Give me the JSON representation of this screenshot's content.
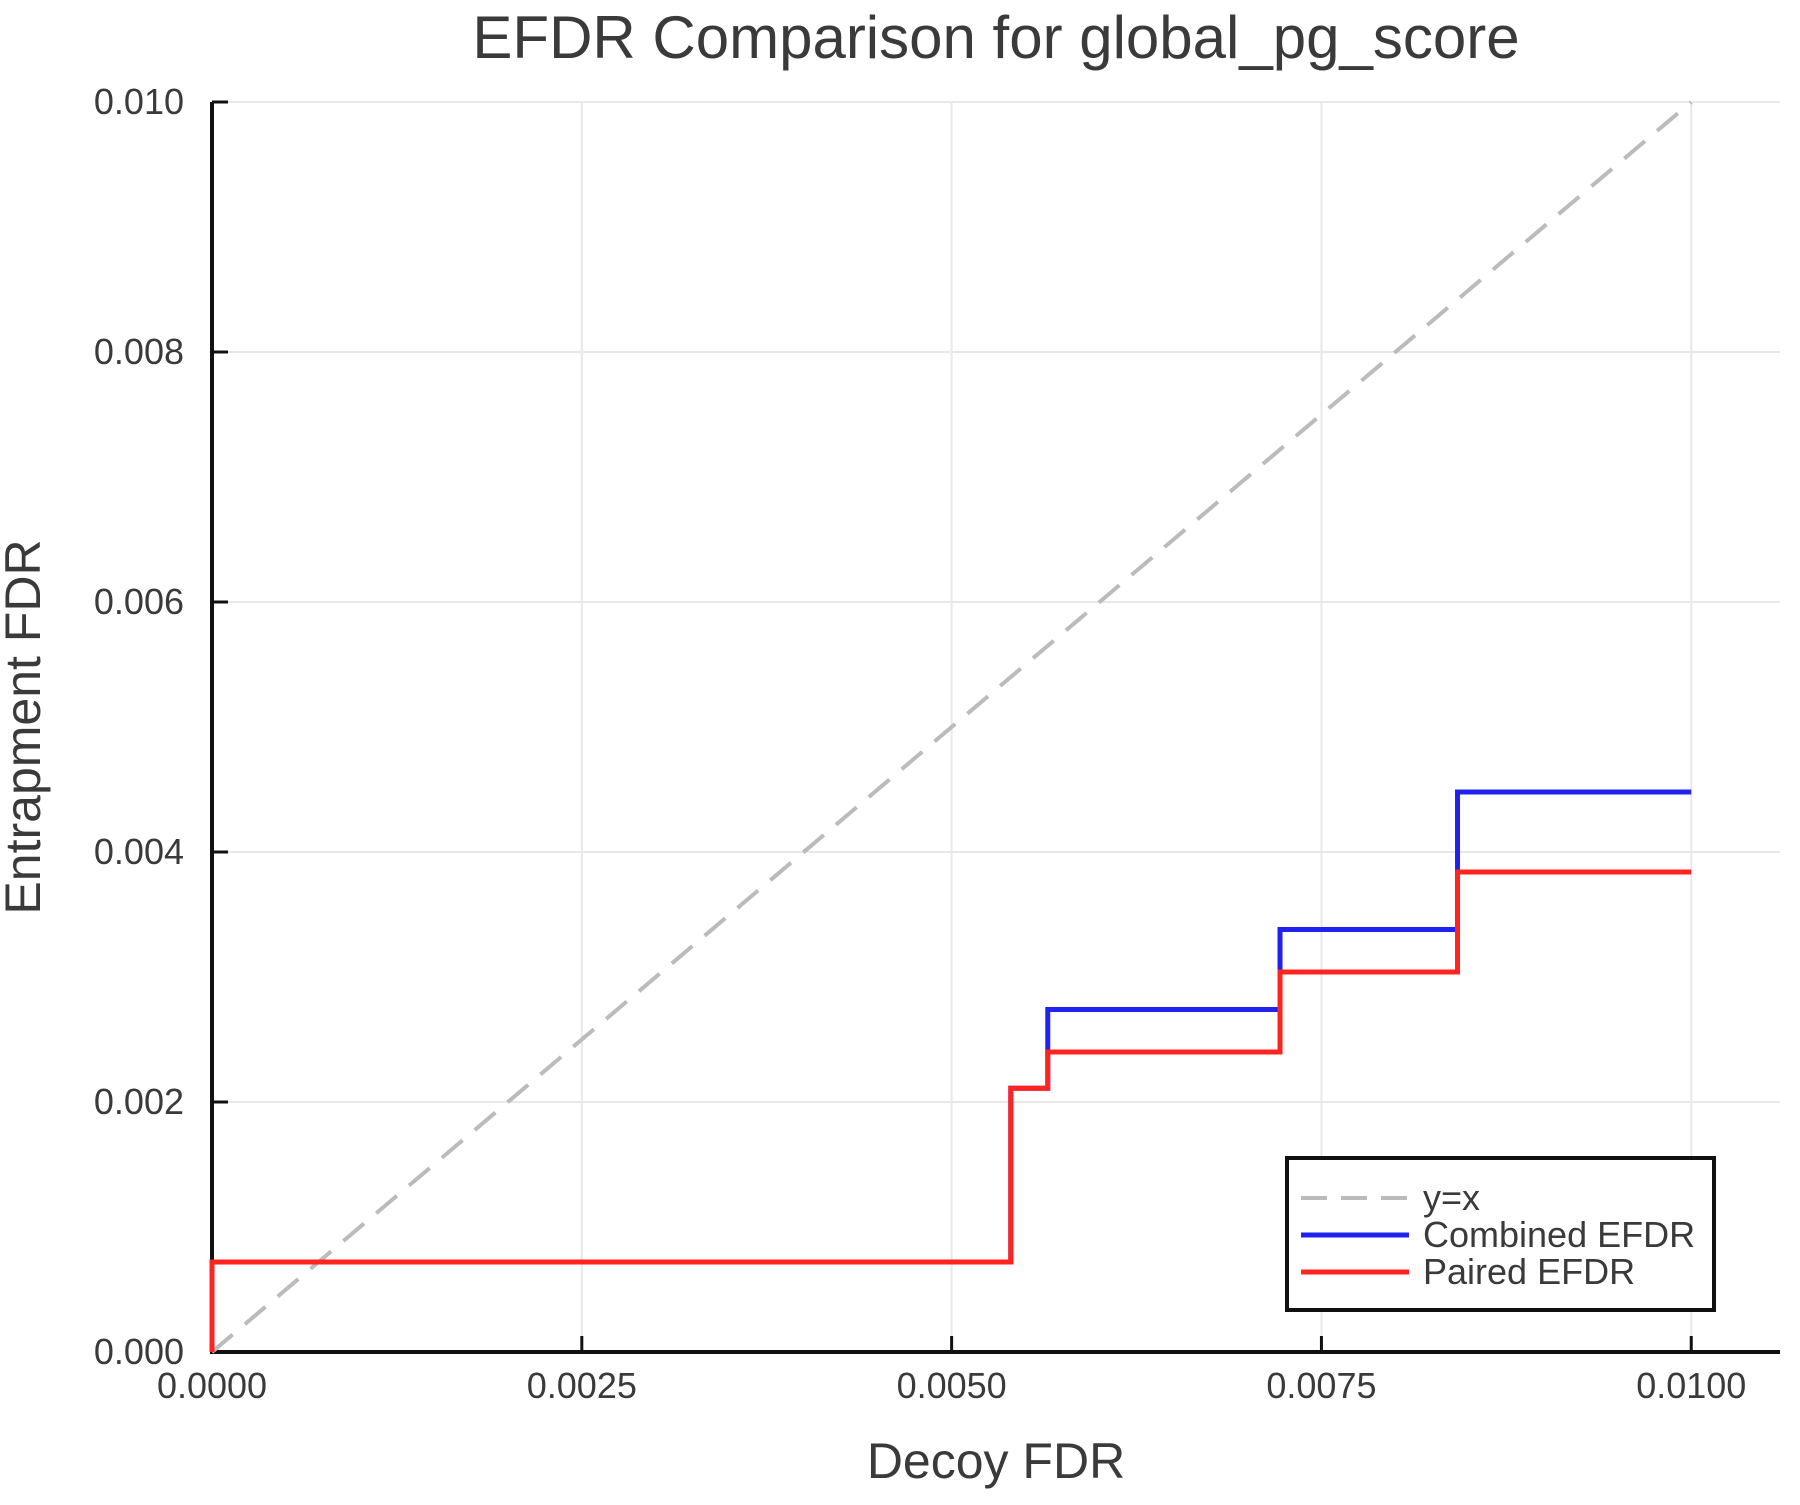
{
  "chart_data": {
    "type": "line",
    "title": "EFDR Comparison for global_pg_score",
    "xlabel": "Decoy FDR",
    "ylabel": "Entrapment FDR",
    "xlim": [
      0,
      0.0106
    ],
    "ylim": [
      0,
      0.01
    ],
    "grid": true,
    "xticks": {
      "values": [
        0.0,
        0.0025,
        0.005,
        0.0075,
        0.01
      ],
      "labels": [
        "0.0000",
        "0.0025",
        "0.0050",
        "0.0075",
        "0.0100"
      ]
    },
    "yticks": {
      "values": [
        0.0,
        0.002,
        0.004,
        0.006,
        0.008,
        0.01
      ],
      "labels": [
        "0.000",
        "0.002",
        "0.004",
        "0.006",
        "0.008",
        "0.010"
      ]
    },
    "colors": {
      "identity": "#bbbbbb",
      "combined": "#2222ee",
      "paired": "#ff2420",
      "grid": "#e8e8e8",
      "spine": "#111111",
      "text": "#3a3a3a"
    },
    "series": [
      {
        "name": "y=x",
        "kind": "diagonal",
        "style": "dashed",
        "color_key": "identity",
        "points": [
          [
            0,
            0
          ],
          [
            0.01,
            0.01
          ]
        ]
      },
      {
        "name": "Combined EFDR",
        "kind": "step",
        "style": "solid",
        "color_key": "combined",
        "start": [
          0,
          0
        ],
        "steps": [
          [
            0.0,
            0.00072
          ],
          [
            0.0054,
            0.00211
          ],
          [
            0.00565,
            0.00274
          ],
          [
            0.00722,
            0.00338
          ],
          [
            0.00842,
            0.00448
          ]
        ],
        "x_end": 0.01
      },
      {
        "name": "Paired EFDR",
        "kind": "step",
        "style": "solid",
        "color_key": "paired",
        "start": [
          0,
          0
        ],
        "steps": [
          [
            0.0,
            0.00072
          ],
          [
            0.0054,
            0.00211
          ],
          [
            0.00565,
            0.0024
          ],
          [
            0.00722,
            0.00304
          ],
          [
            0.00842,
            0.00384
          ]
        ],
        "x_end": 0.01
      }
    ],
    "legend": {
      "position": "lower right",
      "entries": [
        {
          "label": "y=x",
          "style": "dashed",
          "color_key": "identity"
        },
        {
          "label": "Combined EFDR",
          "style": "solid",
          "color_key": "combined"
        },
        {
          "label": "Paired EFDR",
          "style": "solid",
          "color_key": "paired"
        }
      ]
    }
  }
}
